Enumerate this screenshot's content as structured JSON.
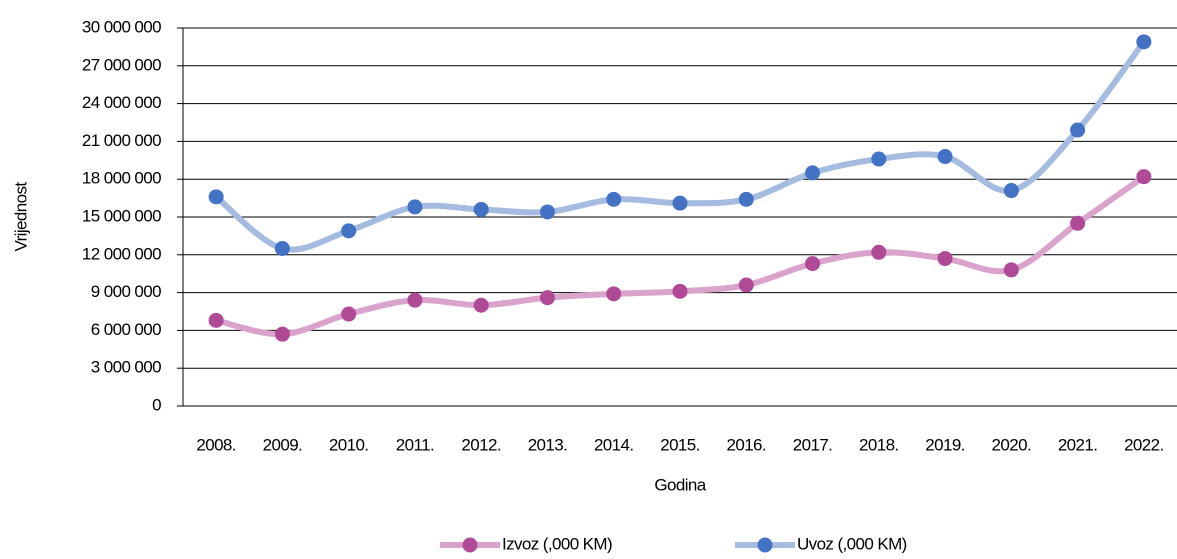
{
  "chart_data": {
    "type": "line",
    "y_label": "Vrijednost",
    "x_label": "Godina",
    "categories": [
      "2008.",
      "2009.",
      "2010.",
      "2011.",
      "2012.",
      "2013.",
      "2014.",
      "2015.",
      "2016.",
      "2017.",
      "2018.",
      "2019.",
      "2020.",
      "2021.",
      "2022."
    ],
    "series": [
      {
        "name": "Izvoz (,000 KM)",
        "color": "#b04a97",
        "line_color": "#d9a3cb",
        "values": [
          6800000,
          5700000,
          7300000,
          8400000,
          8000000,
          8600000,
          8900000,
          9100000,
          9600000,
          11300000,
          12200000,
          11700000,
          10800000,
          14500000,
          18200000
        ]
      },
      {
        "name": "Uvoz (,000 KM)",
        "color": "#4472c4",
        "line_color": "#a5bbe0",
        "values": [
          16600000,
          12500000,
          13900000,
          15800000,
          15600000,
          15400000,
          16400000,
          16100000,
          16400000,
          18500000,
          19600000,
          19800000,
          17100000,
          21900000,
          28900000
        ]
      }
    ],
    "ylim": [
      0,
      30000000
    ],
    "yticks": [
      0,
      {
        "value": 3000000,
        "label": "3 000 000"
      },
      {
        "value": 6000000,
        "label": "6 000 000"
      },
      {
        "value": 9000000,
        "label": "9 000 000"
      },
      {
        "value": 12000000,
        "label": "12 000 000"
      },
      {
        "value": 15000000,
        "label": "15 000 000"
      },
      {
        "value": 18000000,
        "label": "18 000 000"
      },
      {
        "value": 21000000,
        "label": "21 000 000"
      },
      {
        "value": 24000000,
        "label": "24 000 000"
      },
      {
        "value": 27000000,
        "label": "27 000 000"
      },
      {
        "value": 30000000,
        "label": "30 000 000"
      }
    ],
    "grid": true,
    "smooth": true,
    "legend": "bottom"
  }
}
